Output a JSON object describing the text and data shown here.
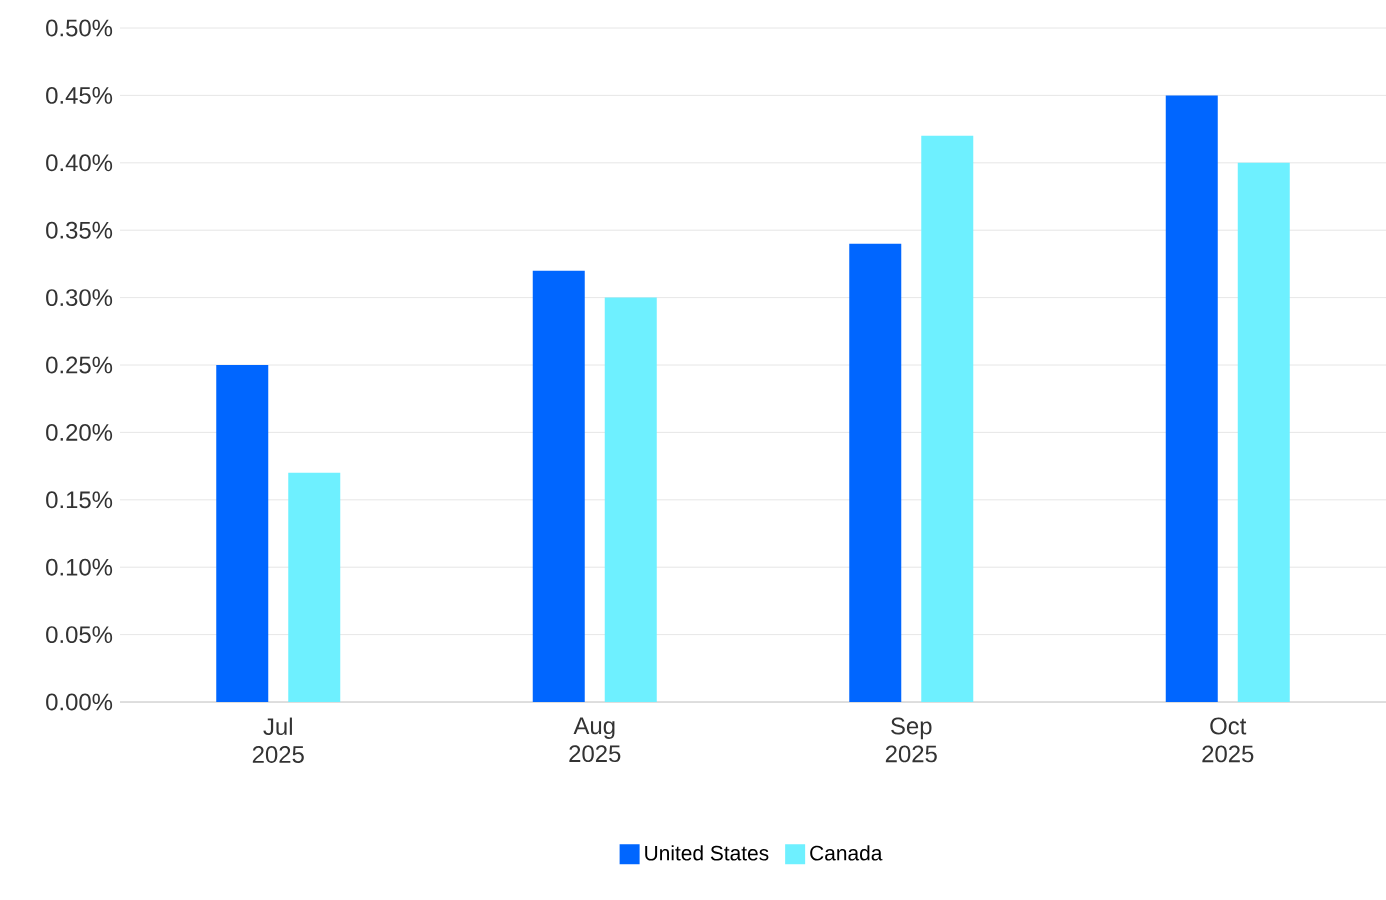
{
  "chart_data": {
    "type": "bar",
    "categories": [
      "Jul 2025",
      "Aug 2025",
      "Sep 2025",
      "Oct 2025"
    ],
    "series": [
      {
        "name": "United States",
        "color": "#0066ff",
        "values": [
          0.25,
          0.32,
          0.34,
          0.45
        ]
      },
      {
        "name": "Canada",
        "color": "#6ef0ff",
        "values": [
          0.17,
          0.3,
          0.42,
          0.4
        ]
      }
    ],
    "ylim": [
      0,
      0.5
    ],
    "yticks": [
      {
        "value": 0,
        "label": "0.00%"
      },
      {
        "value": 0.05,
        "label": "0.05%"
      },
      {
        "value": 0.1,
        "label": "0.10%"
      },
      {
        "value": 0.15,
        "label": "0.15%"
      },
      {
        "value": 0.2,
        "label": "0.20%"
      },
      {
        "value": 0.25,
        "label": "0.25%"
      },
      {
        "value": 0.3,
        "label": "0.30%"
      },
      {
        "value": 0.35,
        "label": "0.35%"
      },
      {
        "value": 0.4,
        "label": "0.40%"
      },
      {
        "value": 0.45,
        "label": "0.45%"
      },
      {
        "value": 0.5,
        "label": "0.50%"
      }
    ],
    "grid": "y",
    "legend": "bottom"
  }
}
